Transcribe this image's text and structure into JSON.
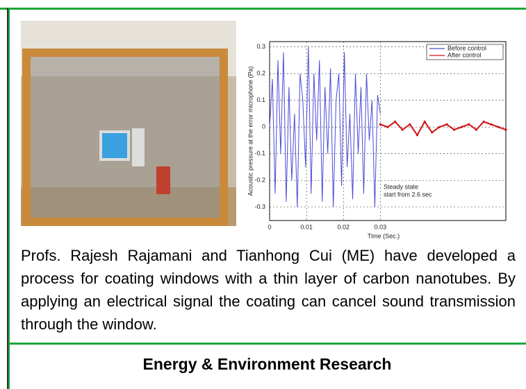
{
  "body": {
    "paragraph": "Profs. Rajesh Rajamani and Tianhong Cui (ME) have developed a process for coating windows with a thin layer of carbon nanotubes.  By applying an electrical signal the coating can cancel sound transmission through the window.",
    "section_title": "Energy & Environment Research"
  },
  "chart_data": {
    "type": "line",
    "x_label": "Time (Sec.)",
    "y_label": "Acoustic pressure at the error microphone (Pa)",
    "annotation": [
      "Steady state",
      "start from 2.6 sec"
    ],
    "xlim": [
      0,
      0.064
    ],
    "ylim": [
      -0.35,
      0.32
    ],
    "xticks": [
      0,
      0.01,
      0.02,
      0.03
    ],
    "yticks": [
      0.3,
      0.2,
      0.1,
      0,
      -0.1,
      -0.2,
      -0.3
    ],
    "grid": true,
    "legend": "top-right",
    "series": [
      {
        "name": "Before control",
        "color": "#4a4ad8",
        "x": [
          0,
          0.00075,
          0.0015,
          0.00225,
          0.003,
          0.00375,
          0.0045,
          0.00525,
          0.006,
          0.00675,
          0.0075,
          0.00825,
          0.009,
          0.00975,
          0.0105,
          0.01125,
          0.012,
          0.01275,
          0.0135,
          0.01425,
          0.015,
          0.01575,
          0.0165,
          0.01725,
          0.018,
          0.01875,
          0.0195,
          0.02025,
          0.021,
          0.02175,
          0.0225,
          0.02325,
          0.024,
          0.02475,
          0.0255,
          0.02625,
          0.027,
          0.02775,
          0.0285,
          0.02925,
          0.03
        ],
        "values": [
          0,
          0.18,
          -0.25,
          0.25,
          -0.1,
          0.28,
          -0.28,
          0.15,
          -0.2,
          0.05,
          -0.3,
          0.2,
          0.1,
          -0.15,
          0.3,
          -0.25,
          0.2,
          -0.05,
          0.25,
          -0.28,
          0.15,
          -0.1,
          0.22,
          -0.3,
          0.1,
          0.2,
          -0.22,
          0.28,
          -0.15,
          0.05,
          -0.27,
          0.2,
          -0.1,
          0.15,
          -0.25,
          0.2,
          -0.05,
          0.1,
          -0.3,
          0.12,
          0.05
        ]
      },
      {
        "name": "After control",
        "color": "#d01010",
        "x": [
          0.03,
          0.032,
          0.034,
          0.036,
          0.038,
          0.04,
          0.042,
          0.044,
          0.046,
          0.048,
          0.05,
          0.052,
          0.054,
          0.056,
          0.058,
          0.06,
          0.062,
          0.064
        ],
        "values": [
          0.01,
          0,
          0.02,
          -0.01,
          0.01,
          -0.03,
          0.02,
          -0.02,
          0,
          0.01,
          -0.01,
          0,
          0.01,
          -0.01,
          0.02,
          0.01,
          0,
          -0.01
        ]
      }
    ]
  }
}
